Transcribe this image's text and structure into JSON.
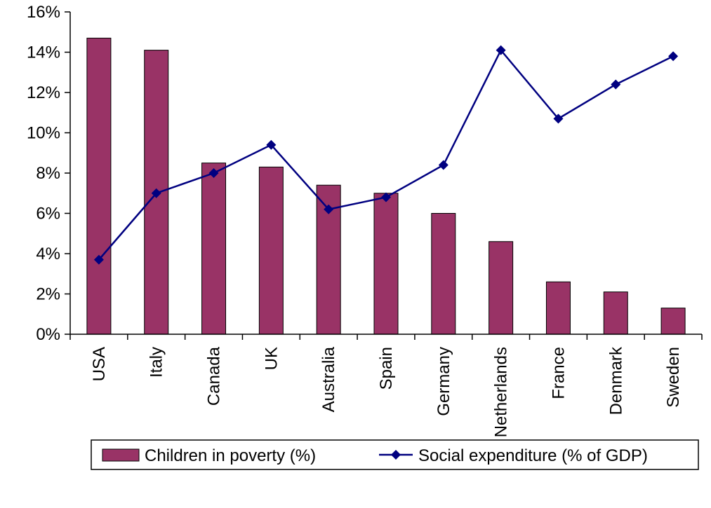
{
  "chart_data": {
    "type": "bar+line",
    "categories": [
      "USA",
      "Italy",
      "Canada",
      "UK",
      "Australia",
      "Spain",
      "Germany",
      "Netherlands",
      "France",
      "Denmark",
      "Sweden"
    ],
    "series": [
      {
        "name": "Children in poverty (%)",
        "type": "bar",
        "values": [
          14.7,
          14.1,
          8.5,
          8.3,
          7.4,
          7.0,
          6.0,
          4.6,
          2.6,
          2.1,
          1.3
        ],
        "color": "#993366"
      },
      {
        "name": "Social expenditure (% of GDP)",
        "type": "line",
        "values": [
          3.7,
          7.0,
          8.0,
          9.4,
          6.2,
          6.8,
          8.4,
          14.1,
          10.7,
          12.4,
          13.8
        ],
        "color": "#000080"
      }
    ],
    "ylim": [
      0,
      16
    ],
    "yticks": [
      0,
      2,
      4,
      6,
      8,
      10,
      12,
      14,
      16
    ],
    "ytick_labels": [
      "0%",
      "2%",
      "4%",
      "6%",
      "8%",
      "10%",
      "12%",
      "14%",
      "16%"
    ],
    "legend": "bottom",
    "grid": false
  }
}
